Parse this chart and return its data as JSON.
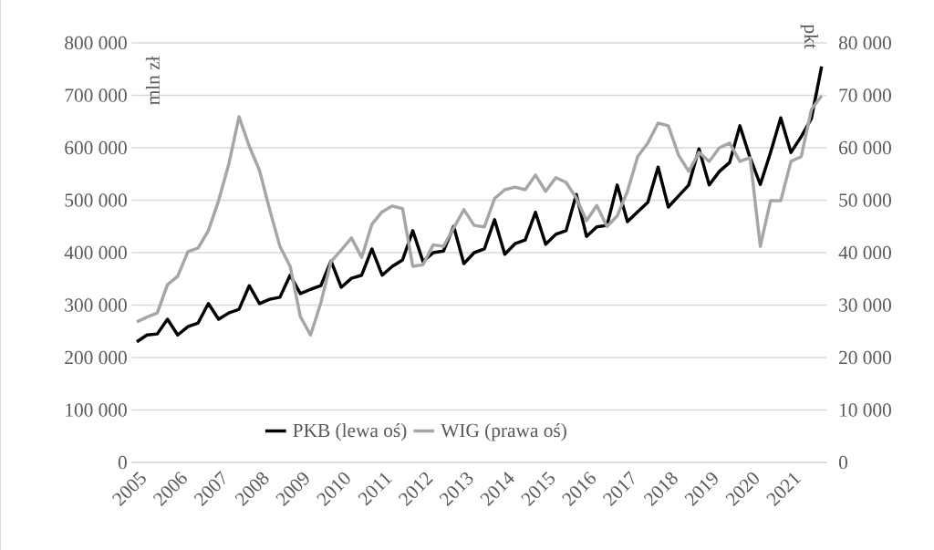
{
  "chart_data": {
    "type": "line",
    "ylabel": "mln zł",
    "y2label": "pkt",
    "categories": [
      "2005",
      null,
      null,
      null,
      "2006",
      null,
      null,
      null,
      "2007",
      null,
      null,
      null,
      "2008",
      null,
      null,
      null,
      "2009",
      null,
      null,
      null,
      "2010",
      null,
      null,
      null,
      "2011",
      null,
      null,
      null,
      "2012",
      null,
      null,
      null,
      "2013",
      null,
      null,
      null,
      "2014",
      null,
      null,
      null,
      "2015",
      null,
      null,
      null,
      "2016",
      null,
      null,
      null,
      "2017",
      null,
      null,
      null,
      "2018",
      null,
      null,
      null,
      "2019",
      null,
      null,
      null,
      "2020",
      null,
      null,
      null,
      "2021",
      null,
      null,
      null
    ],
    "series": [
      {
        "name": "PKB (lewa oś)",
        "color": "#000000",
        "axis": "y",
        "values": [
          230000,
          243000,
          245000,
          273000,
          243000,
          259000,
          266000,
          303000,
          273000,
          285000,
          292000,
          337000,
          303000,
          311000,
          315000,
          357000,
          322000,
          330000,
          337000,
          384000,
          334000,
          351000,
          357000,
          407000,
          357000,
          374000,
          386000,
          442000,
          383000,
          400000,
          403000,
          450000,
          379000,
          400000,
          407000,
          463000,
          397000,
          417000,
          424000,
          477000,
          416000,
          435000,
          442000,
          511000,
          431000,
          449000,
          452000,
          529000,
          459000,
          478000,
          496000,
          563000,
          487000,
          508000,
          529000,
          598000,
          529000,
          555000,
          572000,
          642000,
          581000,
          530000,
          591000,
          657000,
          591000,
          621000,
          656000,
          755000
        ]
      },
      {
        "name": "WIG (prawa oś)",
        "color": "#a6a6a6",
        "axis": "y2",
        "values": [
          26800,
          27700,
          28500,
          33900,
          35500,
          40200,
          40900,
          44200,
          49900,
          56900,
          65900,
          60300,
          55700,
          48200,
          41200,
          37400,
          27800,
          24300,
          30400,
          38300,
          40500,
          42800,
          39100,
          45400,
          47800,
          48900,
          48400,
          37400,
          37700,
          41500,
          41200,
          44700,
          48200,
          45200,
          44900,
          50300,
          52000,
          52500,
          52000,
          54800,
          51700,
          54300,
          53400,
          50400,
          46100,
          49000,
          45000,
          47000,
          51700,
          58300,
          60900,
          64700,
          64200,
          58600,
          55500,
          59100,
          57400,
          60000,
          60900,
          57400,
          58100,
          41200,
          49900,
          49900,
          57400,
          58300,
          67300,
          69900
        ]
      }
    ],
    "ylim": [
      0,
      800000
    ],
    "yticks": [
      {
        "value": 0,
        "label": "0"
      },
      {
        "value": 100000,
        "label": "100 000"
      },
      {
        "value": 200000,
        "label": "200 000"
      },
      {
        "value": 300000,
        "label": "300 000"
      },
      {
        "value": 400000,
        "label": "400 000"
      },
      {
        "value": 500000,
        "label": "500 000"
      },
      {
        "value": 600000,
        "label": "600 000"
      },
      {
        "value": 700000,
        "label": "700 000"
      },
      {
        "value": 800000,
        "label": "800 000"
      }
    ],
    "y2lim": [
      0,
      80000
    ],
    "y2ticks": [
      {
        "value": 0,
        "label": "0"
      },
      {
        "value": 10000,
        "label": "10 000"
      },
      {
        "value": 20000,
        "label": "20 000"
      },
      {
        "value": 30000,
        "label": "30 000"
      },
      {
        "value": 40000,
        "label": "40 000"
      },
      {
        "value": 50000,
        "label": "50 000"
      },
      {
        "value": 60000,
        "label": "60 000"
      },
      {
        "value": 70000,
        "label": "70 000"
      },
      {
        "value": 80000,
        "label": "80 000"
      }
    ],
    "grid": "y",
    "legend": "bottom"
  }
}
